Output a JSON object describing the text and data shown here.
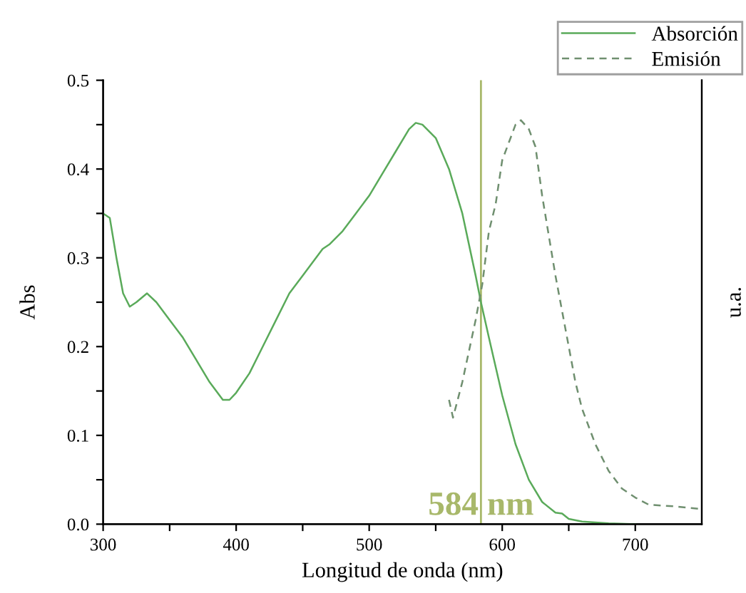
{
  "chart_data": {
    "type": "line",
    "xlabel": "Longitud de onda (nm)",
    "ylabel": "Abs",
    "y2label": "u.a.",
    "xlim": [
      300,
      750
    ],
    "ylim": [
      0,
      0.5
    ],
    "xticks": [
      300,
      {
        "value": 350,
        "label": null
      },
      400,
      {
        "value": 450,
        "label": null
      },
      500,
      {
        "value": 550,
        "label": null
      },
      600,
      {
        "value": 650,
        "label": null
      },
      700
    ],
    "yticks": [
      {
        "value": 0,
        "label": "0.0"
      },
      {
        "value": 0.05,
        "label": null
      },
      0.1,
      {
        "value": 0.15,
        "label": null
      },
      0.2,
      {
        "value": 0.25,
        "label": null
      },
      0.3,
      {
        "value": 0.35,
        "label": null
      },
      0.4,
      {
        "value": 0.45,
        "label": null
      },
      0.5
    ],
    "grid": false,
    "legend": "top right",
    "series": [
      {
        "name": "Absorción",
        "color": "#5aaa5a",
        "line_style": "solid",
        "x": [
          300,
          305,
          310,
          315,
          320,
          325,
          333,
          340,
          350,
          360,
          370,
          380,
          390,
          395,
          400,
          410,
          420,
          430,
          440,
          450,
          460,
          465,
          470,
          480,
          490,
          500,
          510,
          520,
          530,
          535,
          540,
          550,
          560,
          570,
          580,
          584,
          590,
          600,
          610,
          620,
          630,
          640,
          645,
          650,
          660,
          680,
          700
        ],
        "values": [
          0.35,
          0.345,
          0.3,
          0.26,
          0.245,
          0.25,
          0.26,
          0.25,
          0.23,
          0.21,
          0.185,
          0.16,
          0.14,
          0.14,
          0.148,
          0.17,
          0.2,
          0.23,
          0.26,
          0.28,
          0.3,
          0.31,
          0.315,
          0.33,
          0.35,
          0.37,
          0.395,
          0.42,
          0.445,
          0.452,
          0.45,
          0.435,
          0.4,
          0.35,
          0.28,
          0.25,
          0.21,
          0.145,
          0.09,
          0.05,
          0.025,
          0.013,
          0.012,
          0.006,
          0.003,
          0.001,
          0.0
        ]
      },
      {
        "name": "Emisión",
        "color": "#6f8f6f",
        "line_style": "dashed",
        "x": [
          560,
          563,
          570,
          580,
          585,
          590,
          595,
          600,
          605,
          610,
          614,
          620,
          625,
          630,
          640,
          650,
          655,
          660,
          670,
          680,
          690,
          700,
          710,
          730,
          750
        ],
        "values": [
          0.14,
          0.12,
          0.16,
          0.23,
          0.27,
          0.33,
          0.36,
          0.41,
          0.43,
          0.45,
          0.455,
          0.445,
          0.425,
          0.37,
          0.28,
          0.2,
          0.16,
          0.13,
          0.09,
          0.06,
          0.04,
          0.03,
          0.022,
          0.02,
          0.017
        ]
      }
    ],
    "ref_lines": [
      {
        "axis": "x",
        "value": 584,
        "label": "584 nm",
        "color": "#a8b86a"
      }
    ]
  }
}
